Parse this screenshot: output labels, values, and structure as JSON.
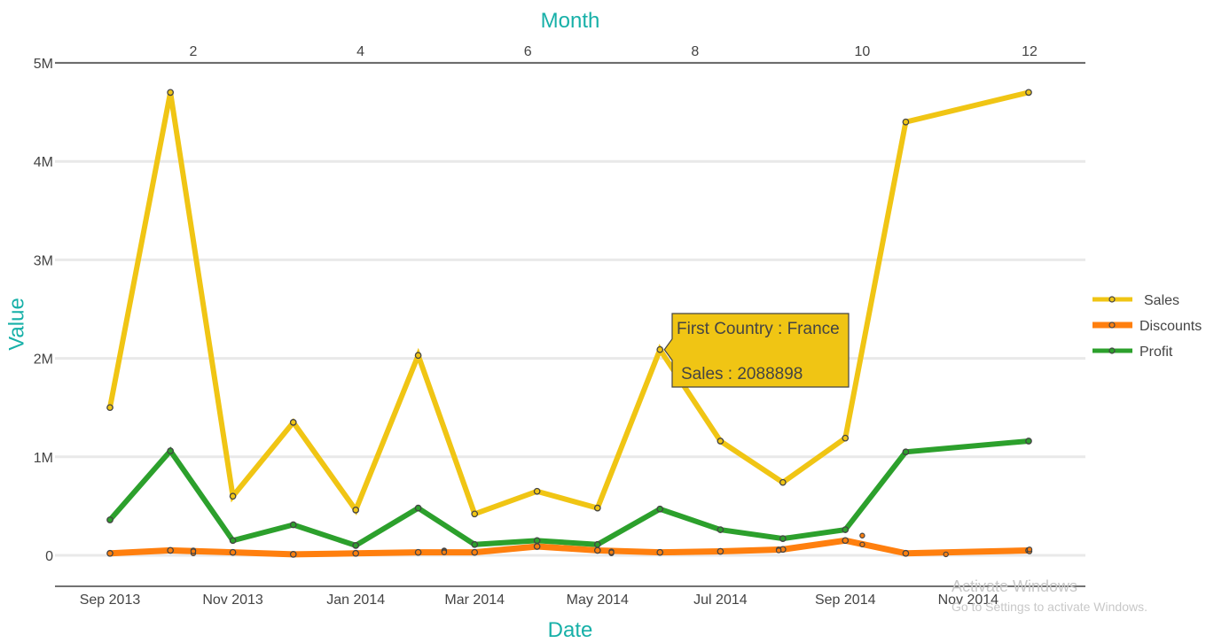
{
  "colors": {
    "axis_title": "#17b0a8",
    "grid": "#e9e9e9",
    "axis_line": "#444444"
  },
  "chart_data": {
    "type": "line",
    "xlabel": "Date",
    "ylabel": "Value",
    "x2label": "Month",
    "ylim": [
      -300000,
      5000000
    ],
    "yticks": [
      0,
      1000000,
      2000000,
      3000000,
      4000000,
      5000000
    ],
    "ytick_labels": [
      "0",
      "1M",
      "2M",
      "3M",
      "4M",
      "5M"
    ],
    "x_dates": [
      "2013-09-01",
      "2013-10-01",
      "2013-11-01",
      "2013-12-01",
      "2014-01-01",
      "2014-02-01",
      "2014-03-01",
      "2014-04-01",
      "2014-05-01",
      "2014-06-01",
      "2014-07-01",
      "2014-08-01",
      "2014-09-01",
      "2014-10-01",
      "2014-12-01"
    ],
    "xticks": [
      "2013-09-01",
      "2013-11-01",
      "2014-01-01",
      "2014-03-01",
      "2014-05-01",
      "2014-07-01",
      "2014-09-01",
      "2014-11-01"
    ],
    "xtick_labels": [
      "Sep 2013",
      "Nov 2013",
      "Jan 2014",
      "Mar 2014",
      "May 2014",
      "Jul 2014",
      "Sep 2014",
      "Nov 2014"
    ],
    "x2ticks": [
      2,
      4,
      6,
      8,
      10,
      12
    ],
    "x2tick_labels": [
      "2",
      "4",
      "6",
      "8",
      "10",
      "12"
    ],
    "series": [
      {
        "name": "Sales",
        "color": "#f0c514",
        "values": [
          1500000,
          4700000,
          600000,
          1350000,
          460000,
          2030000,
          420000,
          650000,
          480000,
          2088898,
          1160000,
          740000,
          1190000,
          4400000,
          4700000
        ]
      },
      {
        "name": "Profit",
        "color": "#2ca02c",
        "values": [
          360000,
          1060000,
          150000,
          310000,
          100000,
          480000,
          110000,
          150000,
          110000,
          470000,
          260000,
          170000,
          260000,
          1050000,
          1160000
        ]
      },
      {
        "name": "Discounts",
        "color": "#ff7f0e",
        "values": [
          20000,
          50000,
          30000,
          10000,
          20000,
          30000,
          30000,
          90000,
          50000,
          30000,
          40000,
          60000,
          150000,
          20000,
          50000
        ]
      }
    ],
    "x2_markers": [
      {
        "month": 2,
        "values": [
          2,
          5,
          4
        ]
      },
      {
        "month": 5,
        "values": [
          5,
          4,
          3
        ]
      },
      {
        "month": 7,
        "values": [
          4,
          2,
          3
        ]
      },
      {
        "month": 9,
        "values": [
          6,
          5
        ]
      },
      {
        "month": 10,
        "values": [
          20,
          11
        ]
      },
      {
        "month": 11,
        "values": [
          1
        ]
      },
      {
        "month": 12,
        "values": [
          4,
          6
        ]
      }
    ],
    "legend": {
      "position": "right",
      "entries": [
        "Sales",
        "Discounts",
        "Profit"
      ]
    },
    "tooltip": {
      "line1": "First Country : France",
      "line2": "Sales : 2088898",
      "point_index": 9
    }
  },
  "watermark": {
    "line1": "Activate Windows",
    "line2": "Go to Settings to activate Windows."
  }
}
